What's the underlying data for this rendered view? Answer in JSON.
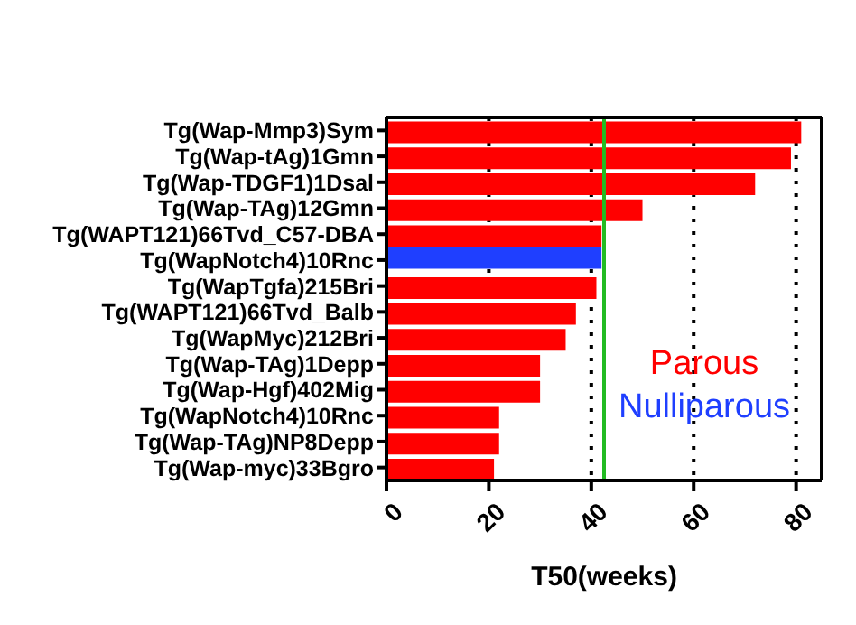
{
  "chart_data": {
    "type": "bar",
    "orientation": "horizontal",
    "xlabel": "T50(weeks)",
    "categories": [
      "Tg(Wap-Mmp3)Sym",
      "Tg(Wap-tAg)1Gmn",
      "Tg(Wap-TDGF1)1Dsal",
      "Tg(Wap-TAg)12Gmn",
      "Tg(WAPT121)66Tvd_C57-DBA",
      "Tg(WapNotch4)10Rnc",
      "Tg(WapTgfa)215Bri",
      "Tg(WAPT121)66Tvd_Balb",
      "Tg(WapMyc)212Bri",
      "Tg(Wap-TAg)1Depp",
      "Tg(Wap-Hgf)402Mig",
      "Tg(WapNotch4)10Rnc",
      "Tg(Wap-TAg)NP8Depp",
      "Tg(Wap-myc)33Bgro"
    ],
    "series": [
      {
        "name": "Parous",
        "color": "#ff0000",
        "values": [
          81,
          79,
          72,
          50,
          42,
          null,
          41,
          37,
          35,
          30,
          30,
          22,
          22,
          21
        ]
      },
      {
        "name": "Nulliparous",
        "color": "#1f3fff",
        "values": [
          null,
          null,
          null,
          null,
          null,
          42,
          null,
          null,
          null,
          null,
          null,
          null,
          null,
          null
        ]
      }
    ],
    "xlim": [
      0,
      85
    ],
    "xticks": [
      0,
      20,
      40,
      60,
      80
    ],
    "grid": "x",
    "legend": "bottom right",
    "ref_lines": [
      {
        "axis": "x",
        "value": 42.5,
        "color": "#22bb22"
      }
    ]
  }
}
